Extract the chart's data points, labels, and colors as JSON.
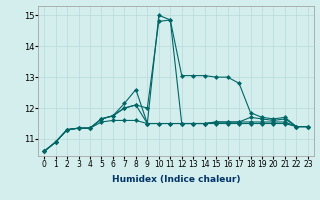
{
  "xlabel": "Humidex (Indice chaleur)",
  "background_color": "#d4eeee",
  "line_color": "#006666",
  "x_values": [
    0,
    1,
    2,
    3,
    4,
    5,
    6,
    7,
    8,
    9,
    10,
    11,
    12,
    13,
    14,
    15,
    16,
    17,
    18,
    19,
    20,
    21,
    22,
    23
  ],
  "series": [
    [
      10.6,
      10.9,
      11.3,
      11.35,
      11.35,
      11.65,
      11.75,
      12.15,
      12.6,
      11.5,
      15.0,
      14.85,
      13.05,
      13.05,
      13.05,
      13.0,
      13.0,
      12.8,
      11.85,
      11.7,
      11.65,
      11.7,
      11.4,
      11.4
    ],
    [
      10.6,
      10.9,
      11.3,
      11.35,
      11.35,
      11.65,
      11.75,
      12.0,
      12.1,
      12.0,
      14.8,
      14.85,
      11.5,
      11.5,
      11.5,
      11.55,
      11.55,
      11.55,
      11.7,
      11.65,
      11.6,
      11.65,
      11.4,
      11.4
    ],
    [
      10.6,
      10.9,
      11.3,
      11.35,
      11.35,
      11.65,
      11.75,
      12.0,
      12.1,
      11.5,
      11.5,
      11.5,
      11.5,
      11.5,
      11.5,
      11.55,
      11.55,
      11.55,
      11.55,
      11.55,
      11.55,
      11.55,
      11.4,
      11.4
    ],
    [
      10.6,
      10.9,
      11.3,
      11.35,
      11.35,
      11.55,
      11.6,
      11.6,
      11.6,
      11.5,
      11.5,
      11.5,
      11.5,
      11.5,
      11.5,
      11.5,
      11.5,
      11.5,
      11.5,
      11.5,
      11.5,
      11.5,
      11.4,
      11.4
    ]
  ],
  "ylim": [
    10.45,
    15.3
  ],
  "yticks": [
    11,
    12,
    13,
    14,
    15
  ],
  "xticks": [
    0,
    1,
    2,
    3,
    4,
    5,
    6,
    7,
    8,
    9,
    10,
    11,
    12,
    13,
    14,
    15,
    16,
    17,
    18,
    19,
    20,
    21,
    22,
    23
  ],
  "grid_color": "#b8dada",
  "marker": "D",
  "marker_size": 2.0,
  "linewidth": 0.8,
  "tick_fontsize": 5.5,
  "xlabel_fontsize": 6.5
}
